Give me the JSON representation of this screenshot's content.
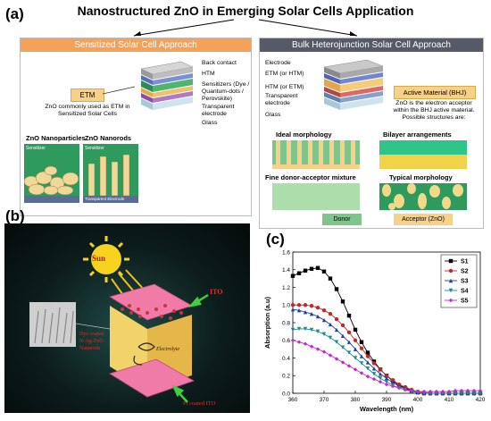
{
  "figure": {
    "panel_a": "(a)",
    "panel_b": "(b)",
    "panel_c": "(c)",
    "title": "Nanostructured ZnO in Emerging Solar Cells Application"
  },
  "sensitized": {
    "header": "Sensitized Solar Cell Approach",
    "layers": [
      "Back contact",
      "HTM",
      "Sensitizers (Dye / Quantum-dots / Perovskite)",
      "Transparent electrode",
      "Glass"
    ],
    "etm_label": "ETM",
    "etm_caption": "ZnO commonly used as ETM in Sensitized Solar Cells",
    "np_title": "ZnO Nanoparticles",
    "nr_title": "ZnO Nanorods",
    "sensitizer_tag": "Sensitizer",
    "electrode_tag": "Transparent Electrode"
  },
  "bulk": {
    "header": "Bulk Heterojunction Solar Cell Approach",
    "layers": [
      "Electrode",
      "ETM (or HTM)",
      "HTM (or ETM)",
      "Transparent electrode",
      "Glass"
    ],
    "active_label": "Active Material (BHJ)",
    "active_caption": "ZnO is the electron acceptor within the BHJ active material. Possible structures are:",
    "morph": [
      "Ideal morphology",
      "Bilayer arrangements",
      "Fine donor-acceptor mixture",
      "Typical morphology"
    ],
    "donor": "Donor",
    "acceptor": "Acceptor (ZnO)"
  },
  "device": {
    "sun": "Sun",
    "ito": "ITO",
    "dye_label": "Dye coated N-Ag-ZnO Nanorods",
    "electrolyte": "Electrolyte",
    "pt_label": "Pt coated ITO"
  },
  "colors": {
    "orange_header": "#f4a15a",
    "grey_header": "#555a66",
    "donor": "#7fc48a",
    "acceptor": "#f7d08a",
    "s1": "#000000",
    "s2": "#c0282a",
    "s3": "#1f3fa8",
    "s4": "#1a8a8a",
    "s5": "#c02ad0"
  },
  "chart_data": {
    "type": "line",
    "xlabel": "Wavelength (nm)",
    "ylabel": "Absorption (a.u)",
    "xlim": [
      360,
      420
    ],
    "ylim": [
      0.0,
      1.6
    ],
    "xticks": [
      360,
      370,
      380,
      390,
      400,
      410,
      420
    ],
    "yticks": [
      0.0,
      0.2,
      0.4,
      0.6,
      0.8,
      1.0,
      1.2,
      1.4,
      1.6
    ],
    "legend_position": "top-right",
    "series": [
      {
        "name": "S1",
        "x": [
          360,
          362,
          364,
          366,
          368,
          370,
          372,
          374,
          376,
          378,
          380,
          382,
          384,
          386,
          388,
          390,
          392,
          394,
          396,
          398,
          400,
          402,
          404,
          406,
          408,
          410,
          412,
          414,
          416,
          418,
          420
        ],
        "y": [
          1.33,
          1.36,
          1.39,
          1.41,
          1.42,
          1.38,
          1.3,
          1.18,
          1.04,
          0.88,
          0.72,
          0.58,
          0.46,
          0.36,
          0.27,
          0.2,
          0.14,
          0.09,
          0.06,
          0.03,
          0.01,
          0.0,
          0.0,
          0.0,
          0.0,
          0.0,
          0.0,
          0.0,
          0.0,
          0.0,
          0.0
        ]
      },
      {
        "name": "S2",
        "x": [
          360,
          362,
          364,
          366,
          368,
          370,
          372,
          374,
          376,
          378,
          380,
          382,
          384,
          386,
          388,
          390,
          392,
          394,
          396,
          398,
          400,
          402,
          404,
          406,
          408,
          410,
          412,
          414,
          416,
          418,
          420
        ],
        "y": [
          1.0,
          1.0,
          1.0,
          0.99,
          0.97,
          0.94,
          0.9,
          0.84,
          0.77,
          0.69,
          0.6,
          0.51,
          0.42,
          0.34,
          0.27,
          0.2,
          0.15,
          0.1,
          0.07,
          0.04,
          0.02,
          0.01,
          0.0,
          0.0,
          0.0,
          0.0,
          0.0,
          0.0,
          0.0,
          0.0,
          0.0
        ]
      },
      {
        "name": "S3",
        "x": [
          360,
          362,
          364,
          366,
          368,
          370,
          372,
          374,
          376,
          378,
          380,
          382,
          384,
          386,
          388,
          390,
          392,
          394,
          396,
          398,
          400,
          402,
          404,
          406,
          408,
          410,
          412,
          414,
          416,
          418,
          420
        ],
        "y": [
          0.95,
          0.94,
          0.92,
          0.9,
          0.87,
          0.83,
          0.78,
          0.72,
          0.65,
          0.58,
          0.5,
          0.42,
          0.35,
          0.28,
          0.22,
          0.17,
          0.12,
          0.08,
          0.05,
          0.03,
          0.01,
          0.0,
          0.0,
          0.0,
          0.0,
          0.0,
          0.0,
          0.0,
          0.0,
          0.0,
          0.0
        ]
      },
      {
        "name": "S4",
        "x": [
          360,
          362,
          364,
          366,
          368,
          370,
          372,
          374,
          376,
          378,
          380,
          382,
          384,
          386,
          388,
          390,
          392,
          394,
          396,
          398,
          400,
          402,
          404,
          406,
          408,
          410,
          412,
          414,
          416,
          418,
          420
        ],
        "y": [
          0.72,
          0.73,
          0.73,
          0.72,
          0.7,
          0.67,
          0.63,
          0.58,
          0.52,
          0.46,
          0.4,
          0.34,
          0.28,
          0.22,
          0.17,
          0.13,
          0.09,
          0.06,
          0.04,
          0.02,
          0.01,
          0.0,
          0.0,
          0.0,
          0.0,
          0.0,
          0.0,
          0.0,
          0.0,
          0.0,
          0.0
        ]
      },
      {
        "name": "S5",
        "x": [
          360,
          362,
          364,
          366,
          368,
          370,
          372,
          374,
          376,
          378,
          380,
          382,
          384,
          386,
          388,
          390,
          392,
          394,
          396,
          398,
          400,
          402,
          404,
          406,
          408,
          410,
          412,
          414,
          416,
          418,
          420
        ],
        "y": [
          0.6,
          0.58,
          0.56,
          0.53,
          0.5,
          0.47,
          0.43,
          0.39,
          0.35,
          0.31,
          0.27,
          0.23,
          0.19,
          0.16,
          0.13,
          0.1,
          0.08,
          0.06,
          0.04,
          0.03,
          0.02,
          0.02,
          0.02,
          0.02,
          0.02,
          0.02,
          0.03,
          0.03,
          0.03,
          0.03,
          0.03
        ]
      }
    ]
  }
}
